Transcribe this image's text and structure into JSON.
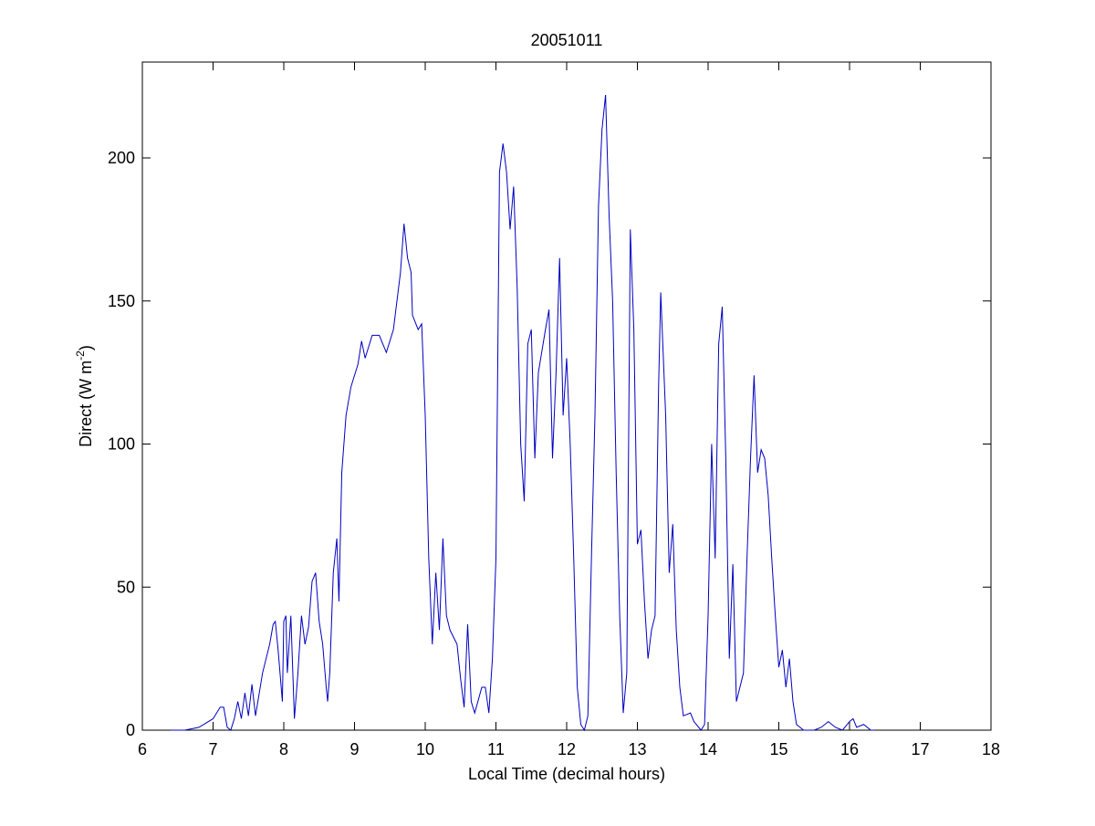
{
  "chart_data": {
    "type": "line",
    "title": "20051011",
    "xlabel": "Local Time (decimal hours)",
    "ylabel": [
      "Direct (W m",
      "-2",
      ")"
    ],
    "xlim": [
      6,
      18
    ],
    "xticks": [
      6,
      7,
      8,
      9,
      10,
      11,
      12,
      13,
      14,
      15,
      16,
      17,
      18
    ],
    "ylim": [
      0,
      233.5
    ],
    "yticks": [
      0,
      50,
      100,
      150,
      200
    ],
    "grid": false,
    "series": [
      {
        "color": "#0000c0",
        "x": [
          6.4,
          6.6,
          6.8,
          7.0,
          7.1,
          7.15,
          7.2,
          7.25,
          7.3,
          7.35,
          7.4,
          7.45,
          7.5,
          7.55,
          7.6,
          7.7,
          7.8,
          7.85,
          7.88,
          7.92,
          7.98,
          8.0,
          8.03,
          8.05,
          8.1,
          8.15,
          8.2,
          8.25,
          8.3,
          8.35,
          8.4,
          8.45,
          8.5,
          8.55,
          8.6,
          8.62,
          8.65,
          8.7,
          8.75,
          8.78,
          8.82,
          8.88,
          8.95,
          9.05,
          9.1,
          9.15,
          9.25,
          9.35,
          9.45,
          9.55,
          9.65,
          9.7,
          9.75,
          9.8,
          9.82,
          9.9,
          9.95,
          10.0,
          10.05,
          10.1,
          10.15,
          10.2,
          10.25,
          10.3,
          10.35,
          10.45,
          10.5,
          10.55,
          10.6,
          10.65,
          10.7,
          10.8,
          10.85,
          10.9,
          10.95,
          11.0,
          11.05,
          11.1,
          11.15,
          11.2,
          11.25,
          11.3,
          11.35,
          11.4,
          11.45,
          11.5,
          11.55,
          11.6,
          11.7,
          11.75,
          11.8,
          11.85,
          11.9,
          11.95,
          12.0,
          12.05,
          12.1,
          12.15,
          12.2,
          12.25,
          12.3,
          12.35,
          12.4,
          12.45,
          12.5,
          12.55,
          12.6,
          12.65,
          12.7,
          12.75,
          12.8,
          12.85,
          12.9,
          12.95,
          13.0,
          13.05,
          13.1,
          13.15,
          13.2,
          13.25,
          13.3,
          13.33,
          13.4,
          13.45,
          13.5,
          13.55,
          13.6,
          13.65,
          13.75,
          13.8,
          13.9,
          13.95,
          14.0,
          14.05,
          14.1,
          14.15,
          14.2,
          14.25,
          14.3,
          14.35,
          14.4,
          14.45,
          14.5,
          14.55,
          14.6,
          14.65,
          14.7,
          14.75,
          14.8,
          14.85,
          14.9,
          14.95,
          15.0,
          15.05,
          15.1,
          15.15,
          15.2,
          15.25,
          15.35,
          15.5,
          15.6,
          15.7,
          15.75,
          15.8,
          15.9,
          16.0,
          16.05,
          16.1,
          16.2,
          16.3,
          16.35
        ],
        "values": [
          0,
          0,
          1,
          4,
          8,
          8,
          1,
          0,
          4,
          10,
          4,
          13,
          5,
          16,
          5,
          20,
          30,
          37,
          38,
          28,
          10,
          38,
          40,
          20,
          40,
          4,
          20,
          40,
          30,
          36,
          52,
          55,
          38,
          30,
          15,
          10,
          20,
          55,
          67,
          45,
          90,
          110,
          120,
          128,
          136,
          130,
          138,
          138,
          132,
          140,
          160,
          177,
          165,
          160,
          145,
          140,
          142,
          110,
          60,
          30,
          55,
          35,
          67,
          40,
          35,
          30,
          18,
          8,
          37,
          10,
          6,
          15,
          15,
          6,
          25,
          60,
          195,
          205,
          195,
          175,
          190,
          155,
          100,
          80,
          135,
          140,
          95,
          125,
          140,
          147,
          95,
          125,
          165,
          110,
          130,
          100,
          60,
          15,
          2,
          0,
          5,
          60,
          110,
          183,
          210,
          222,
          180,
          150,
          90,
          40,
          6,
          20,
          175,
          140,
          65,
          70,
          45,
          25,
          35,
          40,
          120,
          153,
          110,
          55,
          72,
          35,
          15,
          5,
          6,
          3,
          0,
          2,
          40,
          100,
          60,
          135,
          148,
          95,
          25,
          58,
          10,
          15,
          20,
          60,
          95,
          124,
          90,
          98,
          95,
          82,
          60,
          40,
          22,
          28,
          15,
          25,
          10,
          2,
          0,
          0,
          1,
          3,
          2,
          1,
          0,
          3,
          4,
          1,
          2,
          0,
          0
        ]
      }
    ]
  }
}
